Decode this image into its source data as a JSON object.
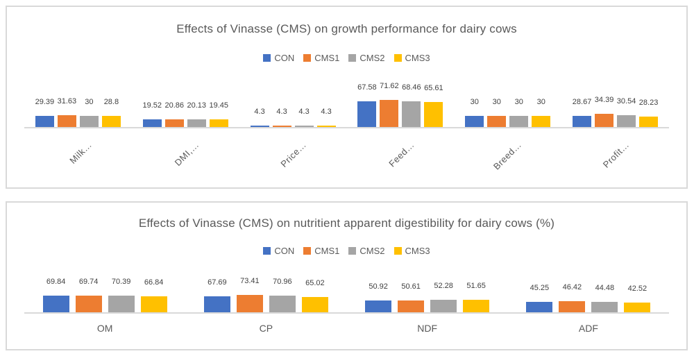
{
  "colors": {
    "panel_border": "#D9D9D9",
    "axis_line": "#D9D9D9",
    "title_text": "#595959",
    "category_text": "#595959",
    "data_label_text": "#404040",
    "background": "#FFFFFF",
    "series": {
      "CON": "#4472C4",
      "CMS1": "#ED7D31",
      "CMS2": "#A5A5A5",
      "CMS3": "#FFC000"
    }
  },
  "chart_data": [
    {
      "type": "bar",
      "title": "Effects of Vinasse (CMS) on growth performance for dairy cows",
      "legend_position": "top",
      "legend_entries": [
        "CON",
        "CMS1",
        "CMS2",
        "CMS3"
      ],
      "data_labels": true,
      "grid": false,
      "x_label_rotation": 45,
      "ylim": [
        0,
        165
      ],
      "categories": [
        "Milk…",
        "DMI,…",
        "Price…",
        "Feed…",
        "Breed…",
        "Profit…"
      ],
      "series": [
        {
          "name": "CON",
          "color": "#4472C4",
          "values": [
            29.39,
            19.52,
            4.3,
            67.58,
            30,
            28.67
          ]
        },
        {
          "name": "CMS1",
          "color": "#ED7D31",
          "values": [
            31.63,
            20.86,
            4.3,
            71.62,
            30,
            34.39
          ]
        },
        {
          "name": "CMS2",
          "color": "#A5A5A5",
          "values": [
            30,
            20.13,
            4.3,
            68.46,
            30,
            30.54
          ]
        },
        {
          "name": "CMS3",
          "color": "#FFC000",
          "values": [
            28.8,
            19.45,
            4.3,
            65.61,
            30,
            28.23
          ]
        }
      ]
    },
    {
      "type": "bar",
      "title": "Effects of Vinasse (CMS) on nutritient apparent digestibility for dairy cows (%)",
      "legend_position": "top",
      "legend_entries": [
        "CON",
        "CMS1",
        "CMS2",
        "CMS3"
      ],
      "data_labels": true,
      "grid": false,
      "x_label_rotation": 0,
      "ylim": [
        0,
        220
      ],
      "categories": [
        "OM",
        "CP",
        "NDF",
        "ADF"
      ],
      "series": [
        {
          "name": "CON",
          "color": "#4472C4",
          "values": [
            69.84,
            67.69,
            50.92,
            45.25
          ]
        },
        {
          "name": "CMS1",
          "color": "#ED7D31",
          "values": [
            69.74,
            73.41,
            50.61,
            46.42
          ]
        },
        {
          "name": "CMS2",
          "color": "#A5A5A5",
          "values": [
            70.39,
            70.96,
            52.28,
            44.48
          ]
        },
        {
          "name": "CMS3",
          "color": "#FFC000",
          "values": [
            66.84,
            65.02,
            51.65,
            42.52
          ]
        }
      ]
    }
  ]
}
